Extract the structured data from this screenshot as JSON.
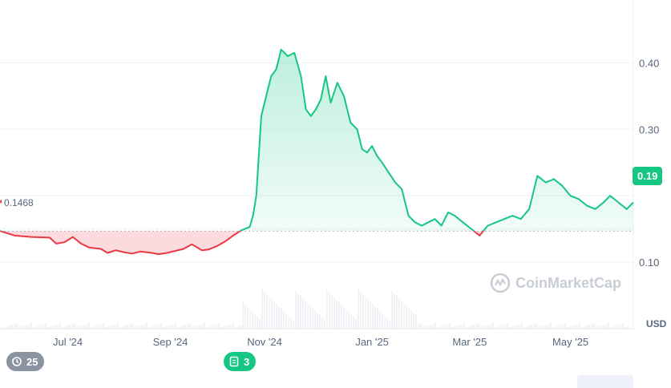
{
  "chart_data": {
    "type": "area",
    "x_ticks": [
      "Jul '24",
      "Sep '24",
      "Nov '24",
      "Jan '25",
      "Mar '25",
      "May '25"
    ],
    "y_ticks": [
      "0.40",
      "0.30",
      "0.10"
    ],
    "y_unit": "USD",
    "ylim": [
      0.0,
      0.48
    ],
    "baseline": {
      "value": 0.1468,
      "label": "0.1468"
    },
    "current_price": {
      "value": 0.19,
      "label": "0.19"
    },
    "colors": {
      "above": "#16c784",
      "below": "#ea3943",
      "baseline": "#a6b0c3"
    },
    "series": [
      {
        "x": [
          "2024-06-01",
          "2024-06-10",
          "2024-06-20",
          "2024-07-01",
          "2024-07-05",
          "2024-07-10",
          "2024-07-15",
          "2024-07-20",
          "2024-07-25",
          "2024-08-01",
          "2024-08-05",
          "2024-08-10",
          "2024-08-15",
          "2024-08-20",
          "2024-08-25",
          "2024-09-01",
          "2024-09-05",
          "2024-09-10",
          "2024-09-15",
          "2024-09-20",
          "2024-09-25",
          "2024-10-01",
          "2024-10-05",
          "2024-10-10",
          "2024-10-15",
          "2024-10-20",
          "2024-10-25",
          "2024-10-30",
          "2024-11-01",
          "2024-11-03",
          "2024-11-06",
          "2024-11-09",
          "2024-11-12",
          "2024-11-15",
          "2024-11-18",
          "2024-11-22",
          "2024-11-26",
          "2024-11-30",
          "2024-12-03",
          "2024-12-06",
          "2024-12-09",
          "2024-12-12",
          "2024-12-15",
          "2024-12-18",
          "2024-12-22",
          "2024-12-26",
          "2024-12-30",
          "2025-01-03",
          "2025-01-06",
          "2025-01-09",
          "2025-01-12",
          "2025-01-15",
          "2025-01-18",
          "2025-01-22",
          "2025-01-26",
          "2025-01-30",
          "2025-02-03",
          "2025-02-07",
          "2025-02-11",
          "2025-02-15",
          "2025-02-19",
          "2025-02-23",
          "2025-02-27",
          "2025-03-03",
          "2025-03-08",
          "2025-03-13",
          "2025-03-18",
          "2025-03-23",
          "2025-03-28",
          "2025-04-02",
          "2025-04-07",
          "2025-04-12",
          "2025-04-17",
          "2025-04-22",
          "2025-04-27",
          "2025-05-02",
          "2025-05-07",
          "2025-05-12",
          "2025-05-17",
          "2025-05-22",
          "2025-05-27",
          "2025-06-01",
          "2025-06-05",
          "2025-06-10",
          "2025-06-15",
          "2025-06-19"
        ],
        "y": [
          0.147,
          0.14,
          0.138,
          0.137,
          0.128,
          0.13,
          0.138,
          0.128,
          0.122,
          0.12,
          0.114,
          0.118,
          0.115,
          0.113,
          0.116,
          0.114,
          0.112,
          0.114,
          0.117,
          0.12,
          0.127,
          0.118,
          0.119,
          0.124,
          0.131,
          0.14,
          0.148,
          0.153,
          0.17,
          0.2,
          0.32,
          0.35,
          0.38,
          0.39,
          0.42,
          0.41,
          0.415,
          0.38,
          0.33,
          0.32,
          0.33,
          0.345,
          0.38,
          0.34,
          0.37,
          0.35,
          0.31,
          0.3,
          0.27,
          0.265,
          0.275,
          0.26,
          0.25,
          0.235,
          0.22,
          0.21,
          0.17,
          0.16,
          0.155,
          0.16,
          0.165,
          0.155,
          0.175,
          0.17,
          0.16,
          0.15,
          0.14,
          0.155,
          0.16,
          0.165,
          0.17,
          0.165,
          0.18,
          0.23,
          0.22,
          0.225,
          0.215,
          0.2,
          0.195,
          0.185,
          0.18,
          0.19,
          0.2,
          0.19,
          0.18,
          0.19
        ]
      }
    ]
  },
  "event_history": {
    "count": "25",
    "icon": "clock-history-icon"
  },
  "event_news": {
    "count": "3",
    "icon": "document-icon"
  },
  "watermark": {
    "text": "CoinMarketCap",
    "icon": "coinmarketcap-logo"
  }
}
